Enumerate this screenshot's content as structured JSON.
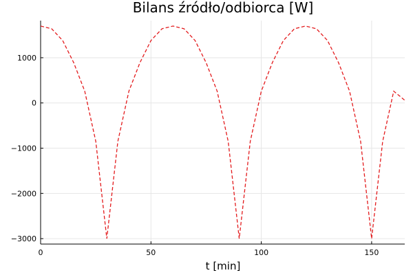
{
  "chart_data": {
    "type": "line",
    "title": "Bilans źródło/odbiorca [W]",
    "xlabel": "t [min]",
    "ylabel": "",
    "xlim": [
      0,
      165
    ],
    "ylim": [
      -3120,
      1820
    ],
    "xticks": [
      0,
      50,
      100,
      150
    ],
    "xtick_labels": [
      "0",
      "50",
      "100",
      "150"
    ],
    "yticks": [
      1000,
      0,
      -1000,
      -2000,
      -3000
    ],
    "ytick_labels": [
      "1000",
      "0",
      "−1000",
      "−2000",
      "−3000"
    ],
    "grid": true,
    "legend": "none",
    "series": [
      {
        "color": "#e31a1c",
        "style": "dashed",
        "x": [
          0,
          5,
          10,
          15,
          20,
          25,
          30,
          35,
          40,
          45,
          50,
          55,
          60,
          65,
          70,
          75,
          80,
          85,
          90,
          95,
          100,
          105,
          110,
          115,
          120,
          125,
          130,
          135,
          140,
          145,
          150,
          155,
          160,
          165
        ],
        "y": [
          1700,
          1640,
          1380,
          890,
          260,
          -850,
          -3000,
          -850,
          260,
          890,
          1380,
          1640,
          1700,
          1640,
          1380,
          890,
          260,
          -850,
          -3000,
          -850,
          260,
          890,
          1380,
          1640,
          1700,
          1640,
          1380,
          890,
          260,
          -850,
          -3000,
          -850,
          260,
          60
        ]
      }
    ]
  }
}
